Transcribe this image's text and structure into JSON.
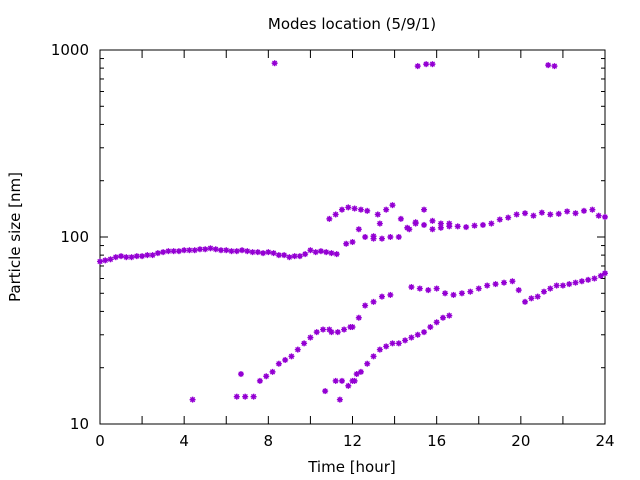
{
  "chart_data": {
    "type": "scatter",
    "title": "Modes location (5/9/1)",
    "xlabel": "Time [hour]",
    "ylabel": "Particle size [nm]",
    "xlim": [
      0,
      24
    ],
    "ylim": [
      10,
      1000
    ],
    "yscale": "log",
    "x_ticks": [
      "0",
      "4",
      "8",
      "12",
      "16",
      "20",
      "24"
    ],
    "y_ticks": [
      "10",
      "100",
      "1000"
    ],
    "grid": false,
    "legend": "none",
    "marker_color": "#9400d3",
    "series": [
      {
        "points": [
          [
            0.0,
            74
          ],
          [
            0.25,
            75
          ],
          [
            0.5,
            76
          ],
          [
            0.75,
            78
          ],
          [
            1.0,
            79
          ],
          [
            1.25,
            78
          ],
          [
            1.5,
            78
          ],
          [
            1.75,
            79
          ],
          [
            2.0,
            79
          ],
          [
            2.25,
            80
          ],
          [
            2.5,
            80
          ],
          [
            2.75,
            82
          ],
          [
            3.0,
            83
          ],
          [
            3.25,
            84
          ],
          [
            3.5,
            84
          ],
          [
            3.75,
            84
          ],
          [
            4.0,
            85
          ],
          [
            4.25,
            85
          ],
          [
            4.5,
            85
          ],
          [
            4.75,
            86
          ],
          [
            5.0,
            86
          ],
          [
            5.25,
            87
          ],
          [
            5.5,
            86
          ],
          [
            5.75,
            85
          ],
          [
            6.0,
            85
          ],
          [
            6.25,
            84
          ],
          [
            6.5,
            84
          ],
          [
            6.75,
            85
          ],
          [
            7.0,
            84
          ],
          [
            7.25,
            83
          ],
          [
            7.5,
            83
          ],
          [
            7.75,
            82
          ],
          [
            8.0,
            83
          ],
          [
            8.25,
            82
          ],
          [
            8.5,
            80
          ],
          [
            8.75,
            80
          ],
          [
            9.0,
            78
          ],
          [
            9.25,
            79
          ],
          [
            9.5,
            79
          ],
          [
            9.75,
            81
          ],
          [
            10.0,
            85
          ],
          [
            10.25,
            83
          ],
          [
            10.5,
            84
          ],
          [
            10.75,
            83
          ],
          [
            11.0,
            82
          ],
          [
            11.25,
            81
          ]
        ]
      },
      {
        "points": [
          [
            10.9,
            125
          ],
          [
            11.2,
            132
          ],
          [
            11.5,
            140
          ],
          [
            11.8,
            144
          ],
          [
            12.1,
            142
          ],
          [
            12.4,
            140
          ],
          [
            12.7,
            138
          ],
          [
            13.2,
            132
          ],
          [
            13.6,
            140
          ],
          [
            13.9,
            148
          ],
          [
            14.3,
            125
          ],
          [
            14.7,
            110
          ],
          [
            15.0,
            120
          ],
          [
            15.4,
            140
          ],
          [
            15.8,
            122
          ],
          [
            16.2,
            118
          ],
          [
            16.6,
            114
          ],
          [
            17.0,
            114
          ],
          [
            17.4,
            113
          ],
          [
            17.8,
            115
          ],
          [
            18.2,
            116
          ],
          [
            18.6,
            118
          ],
          [
            19.0,
            124
          ],
          [
            19.4,
            127
          ],
          [
            19.8,
            132
          ],
          [
            20.2,
            134
          ],
          [
            20.6,
            130
          ],
          [
            21.0,
            135
          ],
          [
            21.4,
            132
          ],
          [
            21.8,
            133
          ],
          [
            22.2,
            137
          ],
          [
            22.6,
            134
          ],
          [
            23.0,
            138
          ],
          [
            23.4,
            140
          ],
          [
            23.7,
            130
          ],
          [
            24.0,
            128
          ]
        ]
      },
      {
        "points": [
          [
            11.7,
            92
          ],
          [
            12.0,
            94
          ],
          [
            12.3,
            110
          ],
          [
            12.6,
            100
          ],
          [
            13.0,
            98
          ],
          [
            13.4,
            98
          ],
          [
            13.8,
            100
          ],
          [
            14.2,
            100
          ],
          [
            14.6,
            112
          ],
          [
            15.0,
            118
          ],
          [
            15.4,
            116
          ],
          [
            15.8,
            110
          ],
          [
            16.2,
            112
          ],
          [
            16.6,
            118
          ]
        ]
      },
      {
        "points": [
          [
            6.5,
            14
          ],
          [
            6.9,
            14
          ],
          [
            7.3,
            14
          ],
          [
            7.6,
            17
          ],
          [
            7.9,
            18
          ],
          [
            8.2,
            19
          ],
          [
            8.5,
            21
          ],
          [
            8.8,
            22
          ],
          [
            9.1,
            23
          ],
          [
            9.4,
            25
          ],
          [
            9.7,
            27
          ],
          [
            10.0,
            29
          ],
          [
            10.3,
            31
          ],
          [
            10.6,
            32
          ],
          [
            10.9,
            32
          ],
          [
            11.3,
            31
          ],
          [
            11.6,
            32
          ],
          [
            12.0,
            33
          ],
          [
            12.3,
            37
          ],
          [
            12.6,
            43
          ],
          [
            13.0,
            45
          ],
          [
            13.4,
            48
          ],
          [
            13.8,
            49
          ]
        ]
      },
      {
        "points": [
          [
            11.2,
            17
          ],
          [
            11.5,
            17
          ],
          [
            11.8,
            16
          ],
          [
            12.1,
            17
          ],
          [
            12.4,
            19
          ],
          [
            12.7,
            21
          ],
          [
            13.0,
            23
          ],
          [
            13.3,
            25
          ],
          [
            13.6,
            26
          ],
          [
            13.9,
            27
          ],
          [
            14.2,
            27
          ],
          [
            14.5,
            28
          ],
          [
            14.8,
            29
          ],
          [
            15.1,
            30
          ],
          [
            15.4,
            31
          ],
          [
            15.7,
            33
          ],
          [
            16.0,
            35
          ],
          [
            16.3,
            37
          ],
          [
            16.6,
            38
          ]
        ]
      },
      {
        "points": [
          [
            14.8,
            54
          ],
          [
            15.2,
            53
          ],
          [
            15.6,
            52
          ],
          [
            16.0,
            53
          ],
          [
            16.4,
            50
          ],
          [
            16.8,
            49
          ],
          [
            17.2,
            50
          ],
          [
            17.6,
            51
          ],
          [
            18.0,
            53
          ],
          [
            18.4,
            55
          ],
          [
            18.8,
            56
          ],
          [
            19.2,
            57
          ],
          [
            19.6,
            58
          ],
          [
            19.9,
            52
          ],
          [
            20.2,
            45
          ],
          [
            20.5,
            47
          ],
          [
            20.8,
            48
          ],
          [
            21.1,
            51
          ],
          [
            21.4,
            53
          ],
          [
            21.7,
            55
          ],
          [
            22.0,
            55
          ],
          [
            22.3,
            56
          ],
          [
            22.6,
            57
          ],
          [
            22.9,
            58
          ],
          [
            23.2,
            59
          ],
          [
            23.5,
            60
          ],
          [
            23.8,
            62
          ],
          [
            24.0,
            64
          ]
        ]
      },
      {
        "points": [
          [
            4.4,
            13.5
          ],
          [
            6.7,
            18.5
          ],
          [
            10.7,
            15
          ],
          [
            11.4,
            13.5
          ],
          [
            12.0,
            17
          ],
          [
            12.2,
            18.5
          ],
          [
            11.0,
            31
          ],
          [
            11.9,
            33
          ],
          [
            13.0,
            101
          ],
          [
            13.3,
            118
          ]
        ]
      },
      {
        "points": [
          [
            8.3,
            850
          ],
          [
            15.1,
            820
          ],
          [
            15.5,
            840
          ],
          [
            15.8,
            840
          ],
          [
            21.3,
            830
          ],
          [
            21.6,
            820
          ]
        ]
      }
    ]
  }
}
